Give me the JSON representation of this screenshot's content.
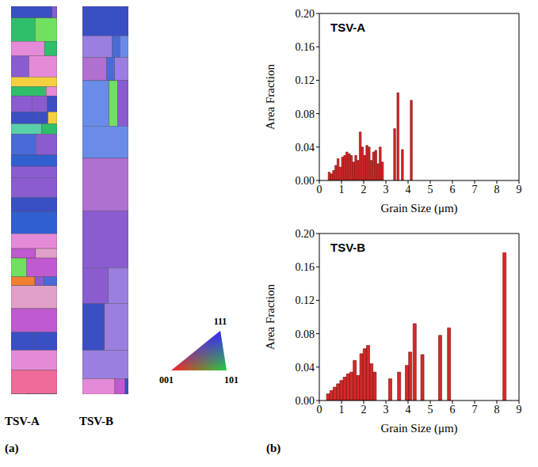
{
  "figure": {
    "panel_labels": [
      "(a)",
      "(b)"
    ],
    "maps": [
      "TSV-A",
      "TSV-B"
    ],
    "orientation_key": {
      "top": "111",
      "left": "001",
      "right": "101"
    }
  },
  "chart_data": [
    {
      "type": "bar",
      "title": "TSV-A",
      "x_label": "Grain Size (μm)",
      "y_label": "Area Fraction",
      "x": [
        0.45,
        0.55,
        0.65,
        0.75,
        0.85,
        0.95,
        1.05,
        1.15,
        1.25,
        1.35,
        1.45,
        1.55,
        1.65,
        1.75,
        1.85,
        1.95,
        2.05,
        2.15,
        2.25,
        2.35,
        2.45,
        2.55,
        2.65,
        2.75,
        2.85,
        3.4,
        3.55,
        3.75,
        4.15
      ],
      "values": [
        0.01,
        0.008,
        0.012,
        0.018,
        0.026,
        0.016,
        0.028,
        0.03,
        0.034,
        0.032,
        0.03,
        0.022,
        0.03,
        0.024,
        0.058,
        0.04,
        0.03,
        0.042,
        0.04,
        0.024,
        0.034,
        0.036,
        0.02,
        0.04,
        0.022,
        0.062,
        0.105,
        0.037,
        0.096
      ],
      "color": "#d42a2a",
      "xlim": [
        0,
        9
      ],
      "xticks": [
        0,
        1,
        2,
        3,
        4,
        5,
        6,
        7,
        8,
        9
      ],
      "ylim": [
        0,
        0.2
      ],
      "yticks": [
        {
          "value": 0,
          "label": "0.00"
        },
        {
          "value": 0.04,
          "label": "0.04"
        },
        {
          "value": 0.08,
          "label": "0.08"
        },
        {
          "value": 0.12,
          "label": "0.12"
        },
        {
          "value": 0.16,
          "label": "0.16"
        },
        {
          "value": 0.2,
          "label": "0.20"
        }
      ]
    },
    {
      "type": "bar",
      "title": "TSV-B",
      "x_label": "Grain Size (μm)",
      "y_label": "Area Fraction",
      "x": [
        0.4,
        0.55,
        0.7,
        0.85,
        1.0,
        1.15,
        1.3,
        1.45,
        1.6,
        1.75,
        1.9,
        2.05,
        2.2,
        2.35,
        2.5,
        3.2,
        3.6,
        3.95,
        4.1,
        4.3,
        4.65,
        5.45,
        5.85,
        8.35
      ],
      "values": [
        0.008,
        0.012,
        0.016,
        0.02,
        0.024,
        0.028,
        0.032,
        0.034,
        0.048,
        0.03,
        0.056,
        0.062,
        0.066,
        0.044,
        0.034,
        0.026,
        0.034,
        0.042,
        0.058,
        0.092,
        0.055,
        0.078,
        0.087,
        0.177
      ],
      "color": "#d42a2a",
      "xlim": [
        0,
        9
      ],
      "xticks": [
        0,
        1,
        2,
        3,
        4,
        5,
        6,
        7,
        8,
        9
      ],
      "ylim": [
        0,
        0.2
      ],
      "yticks": [
        {
          "value": 0,
          "label": "0.00"
        },
        {
          "value": 0.04,
          "label": "0.04"
        },
        {
          "value": 0.08,
          "label": "0.08"
        },
        {
          "value": 0.12,
          "label": "0.12"
        },
        {
          "value": 0.16,
          "label": "0.16"
        },
        {
          "value": 0.2,
          "label": "0.20"
        }
      ]
    }
  ]
}
